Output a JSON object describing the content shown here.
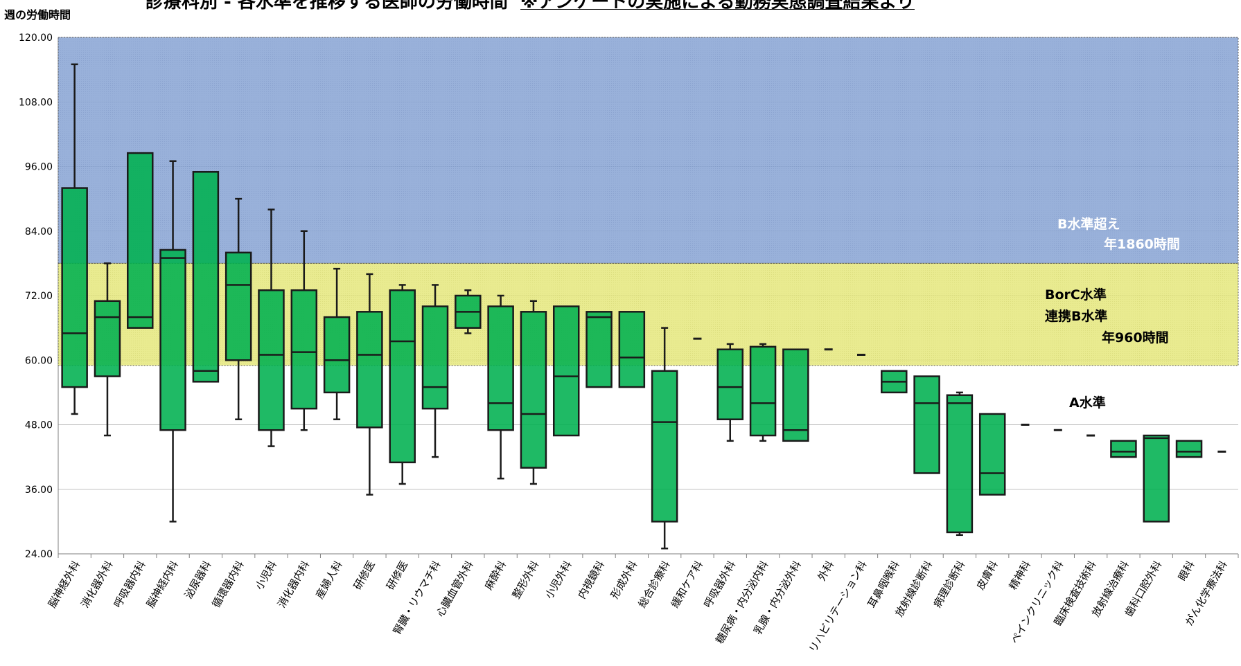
{
  "title": {
    "main": "診療科別 - 各水準を推移する医師の労働時間",
    "note": "※アンケートの実施による勤務実態調査結果より"
  },
  "ylabel": "週の労働時間",
  "colors": {
    "band_B": "#8ea9d6",
    "band_C": "#e6e87a",
    "box_fill": "#00b050",
    "box_stroke": "#1a1a1a",
    "grid": "#bfbfbf"
  },
  "bands": [
    {
      "name": "B水準超え",
      "sub": "年1860時間",
      "from": 78,
      "to": 120
    },
    {
      "name": "BorC水準",
      "name2": "連携B水準",
      "sub": "年960時間",
      "from": 59,
      "to": 78
    },
    {
      "name": "A水準",
      "from": 24,
      "to": 59
    }
  ],
  "chart_data": {
    "type": "box",
    "ylabel": "週の労働時間",
    "ylim": [
      24,
      120
    ],
    "yticks": [
      "24.00",
      "36.00",
      "48.00",
      "60.00",
      "72.00",
      "84.00",
      "96.00",
      "108.00",
      "120.00"
    ],
    "categories": [
      "脳神経外科",
      "消化器外科",
      "呼吸器内科",
      "脳神経内科",
      "泌尿器科",
      "循環器内科",
      "小児科",
      "消化器内科",
      "産婦人科",
      "研修医",
      "研修医",
      "腎臓・リウマチ科",
      "心臓血管外科",
      "麻酔科",
      "整形外科",
      "小児外科",
      "内視鏡科",
      "形成外科",
      "総合診療科",
      "緩和ケア科",
      "呼吸器外科",
      "糖尿病・内分泌内科",
      "乳腺・内分泌外科",
      "外科",
      "リハビリテーション科",
      "耳鼻咽喉科",
      "放射線診断科",
      "病理診断科",
      "皮膚科",
      "精神科",
      "ペインクリニック科",
      "臨床検査技術科",
      "放射線治療科",
      "歯科口腔外科",
      "眼科",
      "がん化学療法科"
    ],
    "boxes": [
      {
        "min": 50,
        "q1": 55,
        "median": 65,
        "q3": 92,
        "max": 115
      },
      {
        "min": 46,
        "q1": 57,
        "median": 68,
        "q3": 71,
        "max": 78
      },
      {
        "min": null,
        "q1": 66,
        "median": 68,
        "q3": 98.5,
        "max": null
      },
      {
        "min": 30,
        "q1": 47,
        "median": 79,
        "q3": 80.5,
        "max": 97
      },
      {
        "min": null,
        "q1": 56,
        "median": 58,
        "q3": 95,
        "max": null
      },
      {
        "min": 49,
        "q1": 60,
        "median": 74,
        "q3": 80,
        "max": 90
      },
      {
        "min": 44,
        "q1": 47,
        "median": 61,
        "q3": 73,
        "max": 88
      },
      {
        "min": 47,
        "q1": 51,
        "median": 61.5,
        "q3": 73,
        "max": 84
      },
      {
        "min": 49,
        "q1": 54,
        "median": 60,
        "q3": 68,
        "max": 77
      },
      {
        "min": 35,
        "q1": 47.5,
        "median": 61,
        "q3": 69,
        "max": 76
      },
      {
        "min": 37,
        "q1": 41,
        "median": 63.5,
        "q3": 73,
        "max": 74
      },
      {
        "min": 42,
        "q1": 51,
        "median": 55,
        "q3": 70,
        "max": 74
      },
      {
        "min": 65,
        "q1": 66,
        "median": 69,
        "q3": 72,
        "max": 73
      },
      {
        "min": 38,
        "q1": 47,
        "median": 52,
        "q3": 70,
        "max": 72
      },
      {
        "min": 37,
        "q1": 40,
        "median": 50,
        "q3": 69,
        "max": 71
      },
      {
        "min": null,
        "q1": 46,
        "median": 57,
        "q3": 70,
        "max": null
      },
      {
        "min": null,
        "q1": 55,
        "median": 68,
        "q3": 69,
        "max": null
      },
      {
        "min": null,
        "q1": 55,
        "median": 60.5,
        "q3": 69,
        "max": null
      },
      {
        "min": 25,
        "q1": 30,
        "median": 48.5,
        "q3": 58,
        "max": 66
      },
      {
        "single": 64
      },
      {
        "min": 45,
        "q1": 49,
        "median": 55,
        "q3": 62,
        "max": 63
      },
      {
        "min": 45,
        "q1": 46,
        "median": 52,
        "q3": 62.5,
        "max": 63
      },
      {
        "min": null,
        "q1": 45,
        "median": 47,
        "q3": 62,
        "max": null
      },
      {
        "single": 62
      },
      {
        "single": 61
      },
      {
        "min": null,
        "q1": 54,
        "median": 56,
        "q3": 58,
        "max": null
      },
      {
        "min": null,
        "q1": 39,
        "median": 52,
        "q3": 57,
        "max": null
      },
      {
        "min": 27.5,
        "q1": 28,
        "median": 52,
        "q3": 53.5,
        "max": 54
      },
      {
        "min": null,
        "q1": 35,
        "median": 39,
        "q3": 50,
        "max": null
      },
      {
        "single": 48
      },
      {
        "single": 47
      },
      {
        "single": 46
      },
      {
        "min": null,
        "q1": 42,
        "median": 43,
        "q3": 45,
        "max": null
      },
      {
        "min": null,
        "q1": 30,
        "median": 45.5,
        "q3": 46,
        "max": null
      },
      {
        "min": null,
        "q1": 42,
        "median": 43,
        "q3": 45,
        "max": null
      },
      {
        "single": 43
      }
    ]
  }
}
